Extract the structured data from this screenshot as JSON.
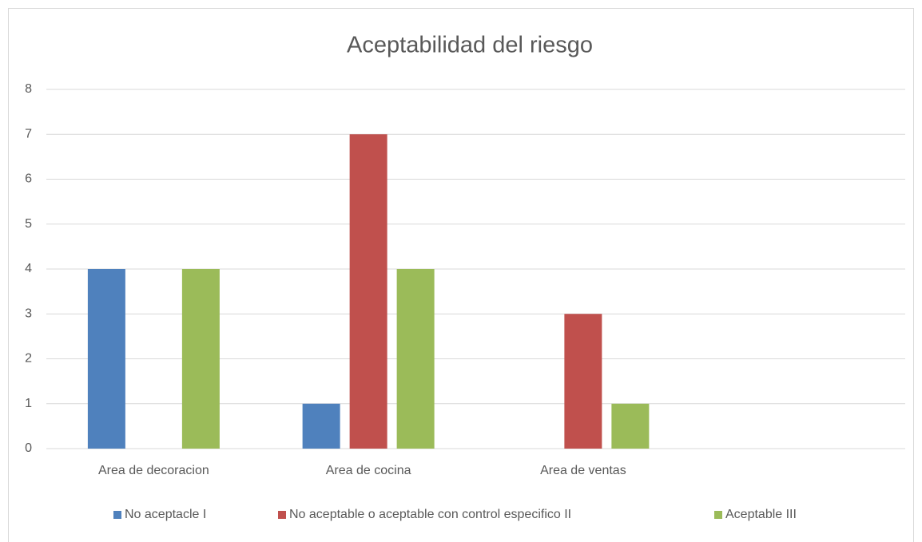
{
  "chart_data": {
    "type": "bar",
    "title": "Aceptabilidad del riesgo",
    "categories": [
      "Area de decoracion",
      "Area de cocina",
      "Area de ventas",
      null
    ],
    "series": [
      {
        "name": "No aceptacle I",
        "color": "#4f81bd",
        "values": [
          4,
          1,
          0,
          null
        ]
      },
      {
        "name": "No aceptable o aceptable con control especifico II",
        "color": "#c0504d",
        "values": [
          0,
          7,
          3,
          null
        ]
      },
      {
        "name": "Aceptable III",
        "color": "#9bbb59",
        "values": [
          4,
          4,
          1,
          null
        ]
      }
    ],
    "ylim": [
      0,
      8
    ],
    "yticks": [
      0,
      1,
      2,
      3,
      4,
      5,
      6,
      7,
      8
    ],
    "grid": true,
    "legend": "bottom"
  }
}
